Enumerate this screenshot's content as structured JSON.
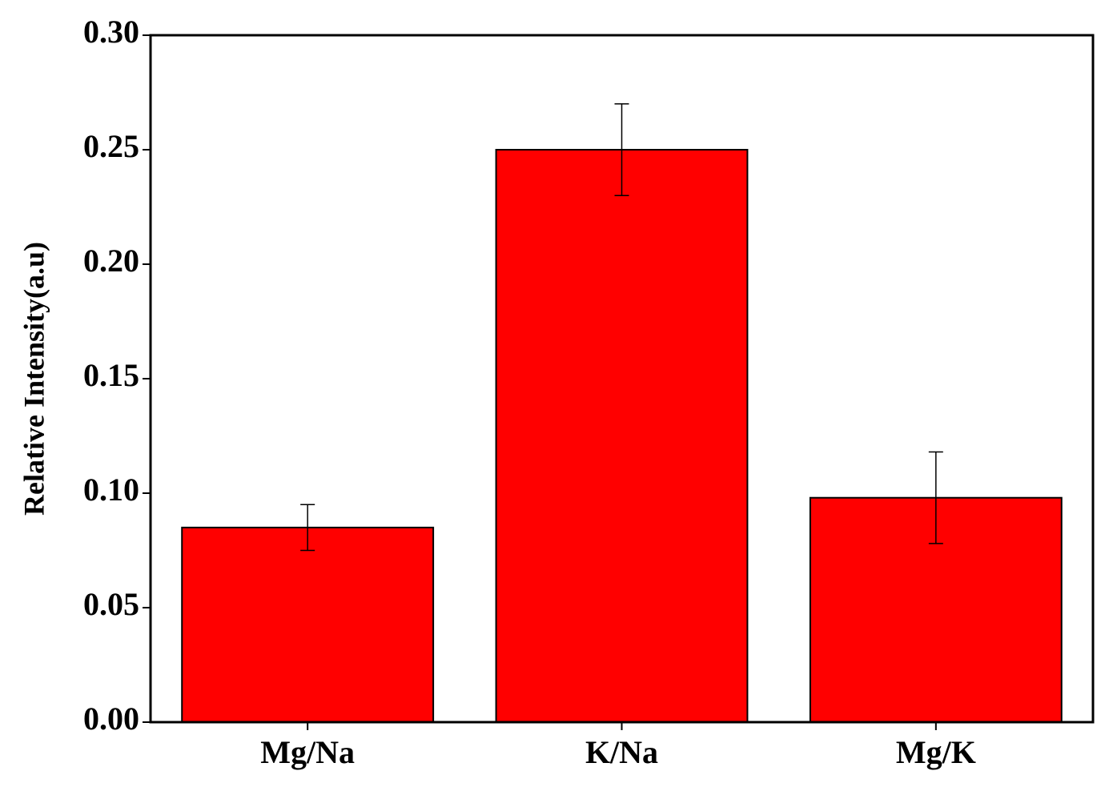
{
  "chart_data": {
    "type": "bar",
    "y_label": "Relative Intensity(a.u)",
    "categories": [
      "Mg/Na",
      "K/Na",
      "Mg/K"
    ],
    "values": [
      0.085,
      0.25,
      0.098
    ],
    "errors": [
      0.01,
      0.02,
      0.02
    ],
    "color": "#ff0000",
    "ylim": [
      0,
      0.3
    ],
    "yticks": [
      {
        "value": 0,
        "label": "0.00"
      },
      {
        "value": 0.05,
        "label": "0.05"
      },
      {
        "value": 0.1,
        "label": "0.10"
      },
      {
        "value": 0.15,
        "label": "0.15"
      },
      {
        "value": 0.2,
        "label": "0.20"
      },
      {
        "value": 0.25,
        "label": "0.25"
      },
      {
        "value": 0.3,
        "label": "0.30"
      }
    ],
    "grid": false
  }
}
